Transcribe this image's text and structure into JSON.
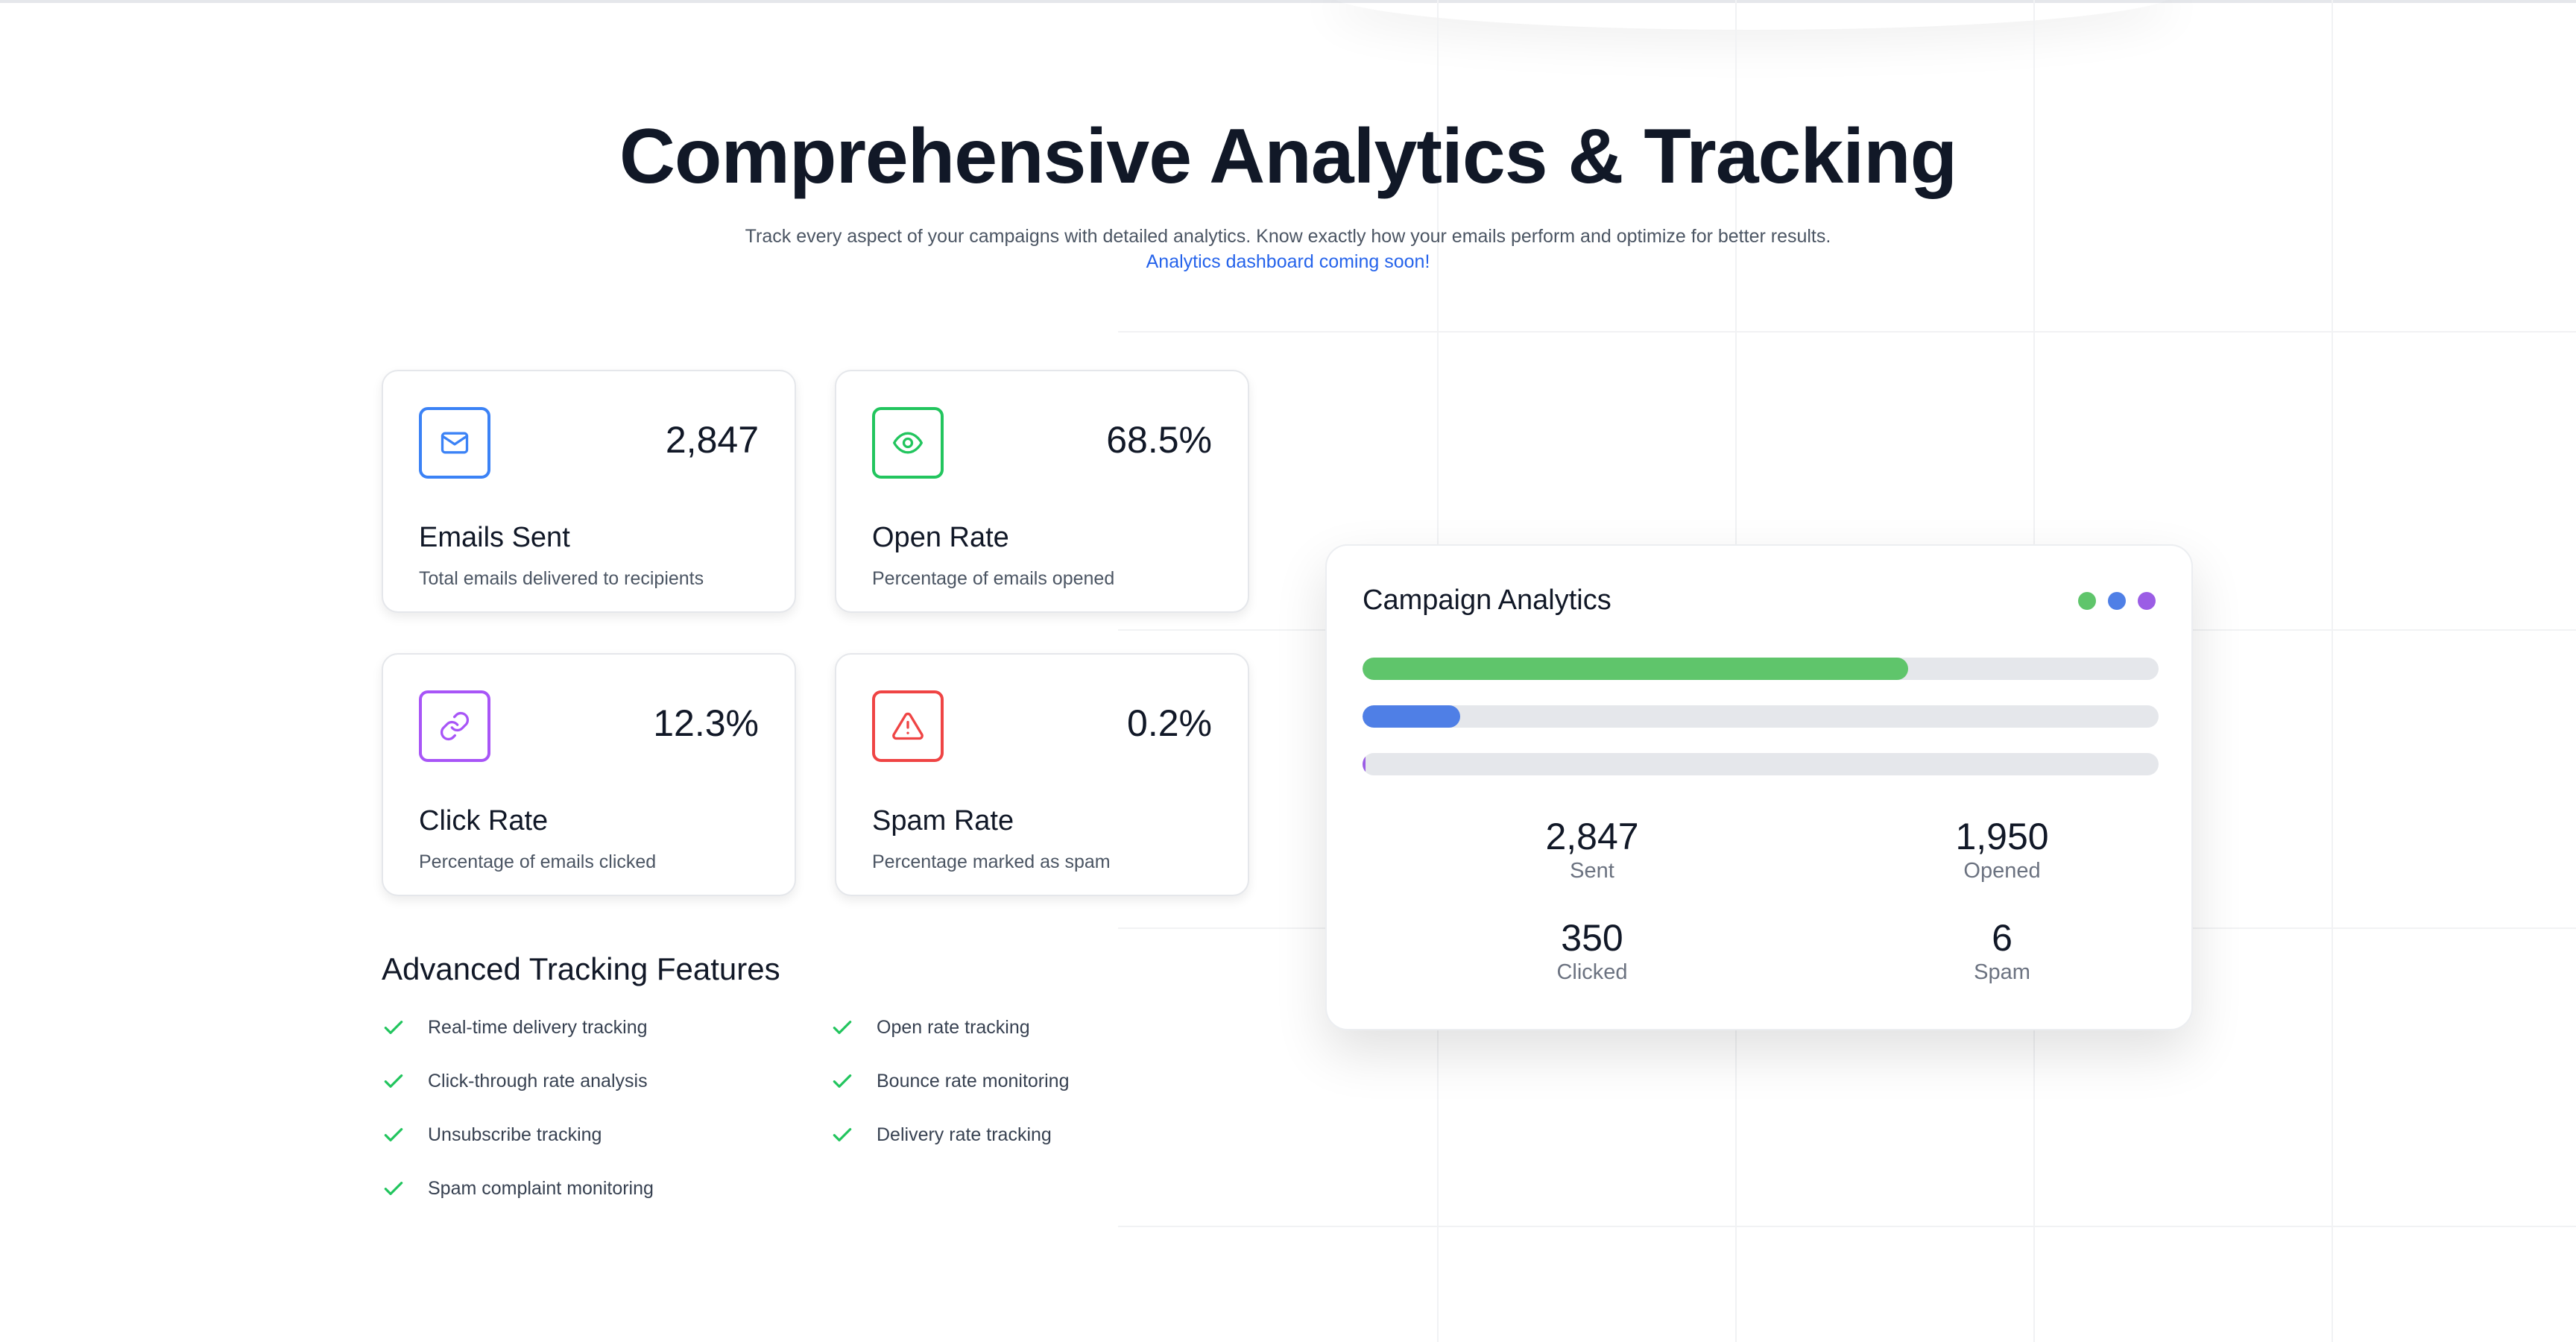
{
  "hero": {
    "title": "Comprehensive Analytics & Tracking",
    "subtitle": "Track every aspect of your campaigns with detailed analytics. Know exactly how your emails perform and optimize for better results.",
    "notice": "Analytics dashboard coming soon!"
  },
  "stats": [
    {
      "icon": "mail-icon",
      "color": "#3b82f6",
      "value": "2,847",
      "title": "Emails Sent",
      "description": "Total emails delivered to recipients"
    },
    {
      "icon": "eye-icon",
      "color": "#22c55e",
      "value": "68.5%",
      "title": "Open Rate",
      "description": "Percentage of emails opened"
    },
    {
      "icon": "link-icon",
      "color": "#a855f7",
      "value": "12.3%",
      "title": "Click Rate",
      "description": "Percentage of emails clicked"
    },
    {
      "icon": "warning-icon",
      "color": "#ef4444",
      "value": "0.2%",
      "title": "Spam Rate",
      "description": "Percentage marked as spam"
    }
  ],
  "features": {
    "heading": "Advanced Tracking Features",
    "check_color": "#22c55e",
    "items": [
      "Real-time delivery tracking",
      "Open rate tracking",
      "Click-through rate analysis",
      "Bounce rate monitoring",
      "Unsubscribe tracking",
      "Delivery rate tracking",
      "Spam complaint monitoring"
    ]
  },
  "campaign": {
    "title": "Campaign Analytics",
    "dots": [
      "#5fc56b",
      "#4f7fe6",
      "#9b5de5"
    ],
    "bars": [
      {
        "fill": 0.685,
        "color": "#5fc56b"
      },
      {
        "fill": 0.123,
        "color": "#4f7fe6"
      },
      {
        "fill": 0.002,
        "color": "#9b5de5"
      }
    ],
    "metrics": [
      {
        "value": "2,847",
        "label": "Sent"
      },
      {
        "value": "1,950",
        "label": "Opened"
      },
      {
        "value": "350",
        "label": "Clicked"
      },
      {
        "value": "6",
        "label": "Spam"
      }
    ]
  }
}
